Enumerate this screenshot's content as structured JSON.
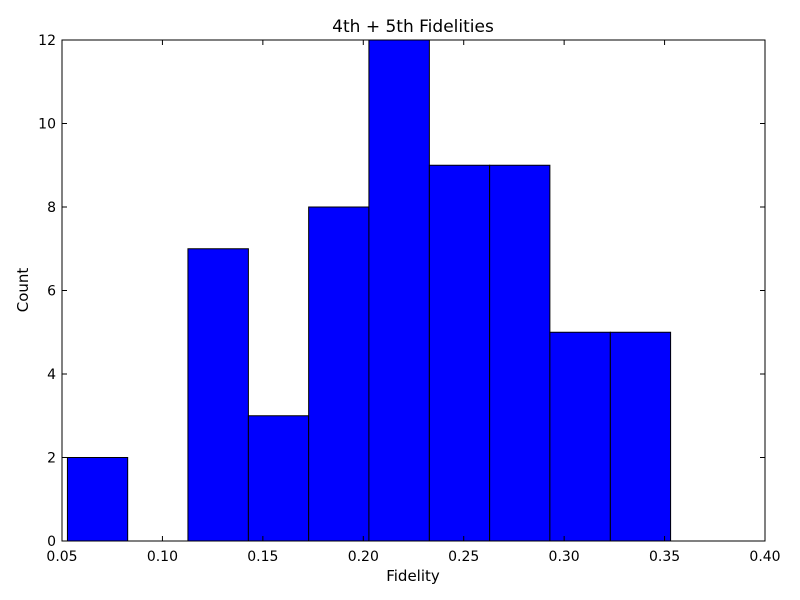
{
  "chart_data": {
    "type": "bar",
    "title": "4th + 5th Fidelities",
    "xlabel": "Fidelity",
    "ylabel": "Count",
    "xlim": [
      0.05,
      0.4
    ],
    "ylim": [
      0,
      12
    ],
    "bins": [
      {
        "start": 0.0527,
        "end": 0.0827,
        "count": 2
      },
      {
        "start": 0.0827,
        "end": 0.1127,
        "count": 0
      },
      {
        "start": 0.1127,
        "end": 0.1428,
        "count": 7
      },
      {
        "start": 0.1428,
        "end": 0.1728,
        "count": 3
      },
      {
        "start": 0.1728,
        "end": 0.2028,
        "count": 8
      },
      {
        "start": 0.2028,
        "end": 0.2329,
        "count": 12
      },
      {
        "start": 0.2329,
        "end": 0.2629,
        "count": 9
      },
      {
        "start": 0.2629,
        "end": 0.2929,
        "count": 9
      },
      {
        "start": 0.2929,
        "end": 0.323,
        "count": 5
      },
      {
        "start": 0.323,
        "end": 0.353,
        "count": 5
      }
    ],
    "x_ticks": [
      "0.05",
      "0.10",
      "0.15",
      "0.20",
      "0.25",
      "0.30",
      "0.35",
      "0.40"
    ],
    "y_ticks": [
      "0",
      "2",
      "4",
      "6",
      "8",
      "10",
      "12"
    ],
    "bar_color": "#0000ff",
    "edge_color": "#000000",
    "grid": false,
    "legend": "none"
  }
}
